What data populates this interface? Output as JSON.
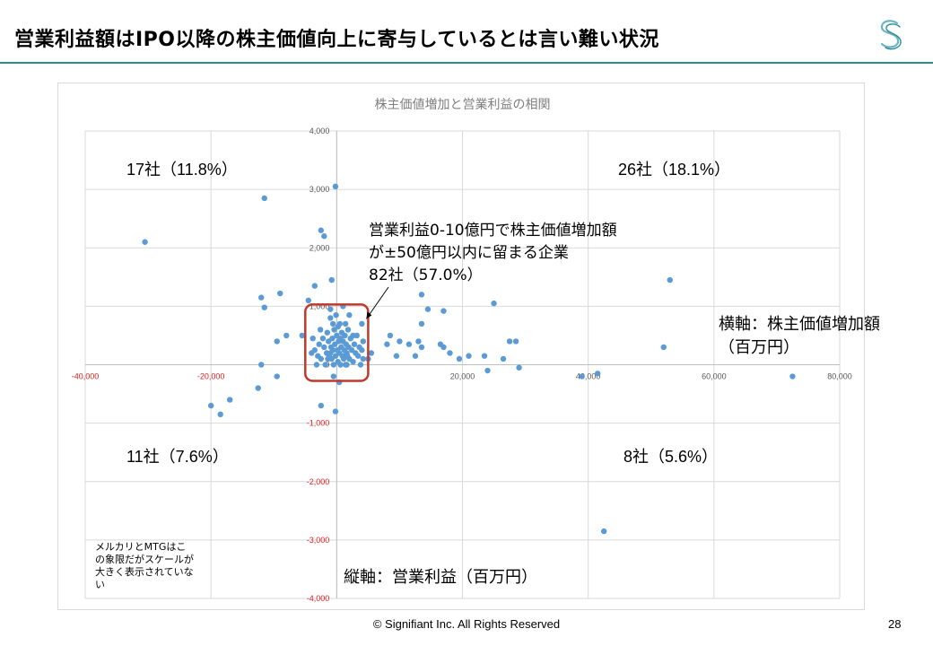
{
  "slide": {
    "title": "営業利益額はIPO以降の株主価値向上に寄与しているとは言い難い状況",
    "footer": "© Signifiant Inc. All Rights Reserved",
    "page_number": "28",
    "logo_icon": "signifiant-s-logo-icon",
    "accent_color": "#2a8e8e"
  },
  "annotations": {
    "q_top_left": "17社（11.8%）",
    "q_top_right": "26社（18.1%）",
    "q_bottom_left": "11社（7.6%）",
    "q_bottom_right": "8社（5.6%）",
    "center_line1": "営業利益0-10億円で株主価値増加額",
    "center_line2": "が±50億円以内に留まる企業",
    "center_line3": "82社（57.0%）",
    "x_axis_note_line1": "横軸：株主価値増加額",
    "x_axis_note_line2": "（百万円）",
    "y_axis_note": "縦軸：営業利益（百万円）",
    "small_note": "メルカリとMTGはこの象限だがスケールが大きく表示されていない"
  },
  "chart_data": {
    "type": "scatter",
    "title": "株主価値増加と営業利益の相関",
    "xlim": [
      -40000,
      80000
    ],
    "ylim": [
      -4000,
      4000
    ],
    "x_ticks": [
      "-40,000",
      "-20,000",
      "0",
      "20,000",
      "40,000",
      "60,000",
      "80,000"
    ],
    "y_ticks": [
      "4,000",
      "3,000",
      "2,000",
      "1,000",
      "0",
      "-1,000",
      "-2,000",
      "-3,000",
      "-4,000"
    ],
    "grid": true,
    "point_color": "#5b9bd5",
    "highlight_box": {
      "x_range": [
        -5000,
        5000
      ],
      "y_range": [
        0,
        1000
      ],
      "color": "#c0392b"
    },
    "series": [
      {
        "points": [
          [
            -30500,
            2100
          ],
          [
            -11500,
            2850
          ],
          [
            -200,
            3050
          ],
          [
            -2500,
            2300
          ],
          [
            -2000,
            2200
          ],
          [
            -12000,
            1150
          ],
          [
            -9000,
            1220
          ],
          [
            -4500,
            1100
          ],
          [
            -11500,
            980
          ],
          [
            -800,
            1450
          ],
          [
            -3500,
            1350
          ],
          [
            1000,
            1000
          ],
          [
            -8000,
            500
          ],
          [
            -9500,
            400
          ],
          [
            -5500,
            500
          ],
          [
            -1000,
            950
          ],
          [
            13500,
            1200
          ],
          [
            14500,
            950
          ],
          [
            17000,
            920
          ],
          [
            25000,
            1050
          ],
          [
            53000,
            1450
          ],
          [
            52000,
            300
          ],
          [
            -12000,
            0
          ],
          [
            -9500,
            -200
          ],
          [
            -12500,
            -400
          ],
          [
            -20000,
            -700
          ],
          [
            -18500,
            -850
          ],
          [
            -17000,
            -600
          ],
          [
            -2500,
            -700
          ],
          [
            -200,
            -800
          ],
          [
            -500,
            -200
          ],
          [
            400,
            -300
          ],
          [
            39000,
            -200
          ],
          [
            41500,
            -150
          ],
          [
            72500,
            -200
          ],
          [
            42500,
            -2850
          ],
          [
            8000,
            350
          ],
          [
            8500,
            500
          ],
          [
            9500,
            150
          ],
          [
            10000,
            400
          ],
          [
            11500,
            350
          ],
          [
            12500,
            150
          ],
          [
            13000,
            400
          ],
          [
            13500,
            700
          ],
          [
            13500,
            300
          ],
          [
            16500,
            350
          ],
          [
            17000,
            300
          ],
          [
            18000,
            200
          ],
          [
            19500,
            100
          ],
          [
            21000,
            150
          ],
          [
            23500,
            150
          ],
          [
            24000,
            -100
          ],
          [
            26500,
            100
          ],
          [
            27500,
            400
          ],
          [
            28500,
            400
          ],
          [
            29000,
            -50
          ],
          [
            5500,
            200
          ],
          [
            4000,
            700
          ],
          [
            4200,
            400
          ],
          [
            5000,
            100
          ],
          [
            -4000,
            200
          ],
          [
            -3500,
            250
          ],
          [
            -3000,
            150
          ],
          [
            -2800,
            350
          ],
          [
            -2500,
            100
          ],
          [
            -2200,
            450
          ],
          [
            -2000,
            300
          ],
          [
            -1800,
            0
          ],
          [
            -1600,
            200
          ],
          [
            -1500,
            550
          ],
          [
            -1300,
            400
          ],
          [
            -1200,
            150
          ],
          [
            -1000,
            800
          ],
          [
            -900,
            300
          ],
          [
            -800,
            100
          ],
          [
            -700,
            450
          ],
          [
            -600,
            250
          ],
          [
            -500,
            0
          ],
          [
            -400,
            600
          ],
          [
            -300,
            350
          ],
          [
            -200,
            150
          ],
          [
            -100,
            850
          ],
          [
            0,
            500
          ],
          [
            100,
            250
          ],
          [
            200,
            50
          ],
          [
            300,
            400
          ],
          [
            400,
            200
          ],
          [
            500,
            700
          ],
          [
            600,
            0
          ],
          [
            700,
            300
          ],
          [
            800,
            550
          ],
          [
            900,
            150
          ],
          [
            1000,
            400
          ],
          [
            1100,
            100
          ],
          [
            1200,
            250
          ],
          [
            1300,
            500
          ],
          [
            1400,
            0
          ],
          [
            1500,
            350
          ],
          [
            1600,
            200
          ],
          [
            1700,
            150
          ],
          [
            1800,
            600
          ],
          [
            1900,
            300
          ],
          [
            2000,
            100
          ],
          [
            2200,
            450
          ],
          [
            2400,
            250
          ],
          [
            2600,
            50
          ],
          [
            2800,
            350
          ],
          [
            3000,
            200
          ],
          [
            3200,
            500
          ],
          [
            3400,
            150
          ],
          [
            3600,
            300
          ],
          [
            3800,
            0
          ],
          [
            4000,
            250
          ],
          [
            4200,
            100
          ],
          [
            -3800,
            450
          ],
          [
            -3200,
            0
          ],
          [
            -2600,
            600
          ],
          [
            -1400,
            100
          ],
          [
            -600,
            700
          ],
          [
            200,
            650
          ],
          [
            600,
            450
          ],
          [
            1400,
            700
          ],
          [
            2000,
            850
          ],
          [
            2600,
            500
          ],
          [
            -1000,
            200
          ],
          [
            1600,
            0
          ]
        ]
      }
    ]
  }
}
